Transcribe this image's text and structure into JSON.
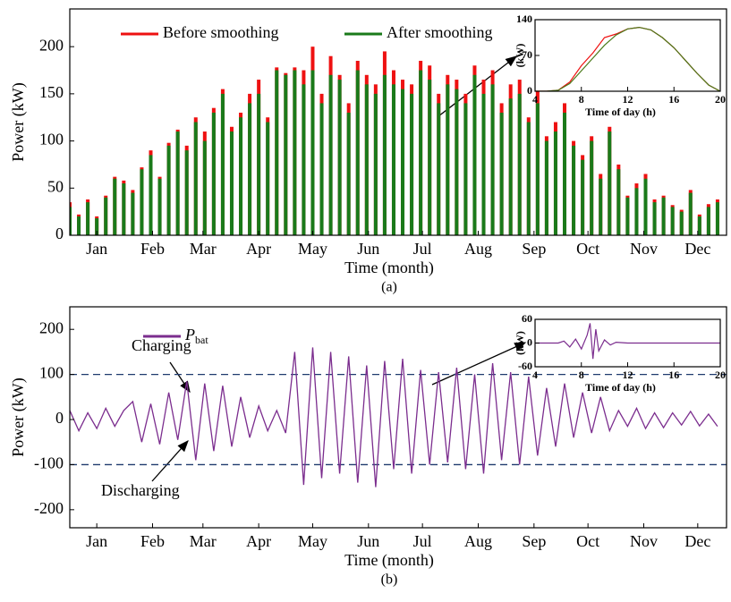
{
  "chart_data": [
    {
      "type": "bar",
      "xlabel": "Time (month)",
      "ylabel": "Power (kW)",
      "caption": "(a)",
      "x": [
        0,
        5,
        10,
        15,
        20,
        25,
        30,
        35,
        40,
        45,
        50,
        55,
        60,
        65,
        70,
        75,
        80,
        85,
        90,
        95,
        100,
        105,
        110,
        115,
        120,
        125,
        130,
        135,
        140,
        145,
        150,
        155,
        160,
        165,
        170,
        175,
        180,
        185,
        190,
        195,
        200,
        205,
        210,
        215,
        220,
        225,
        230,
        235,
        240,
        245,
        250,
        255,
        260,
        265,
        270,
        275,
        280,
        285,
        290,
        295,
        300,
        305,
        310,
        315,
        320,
        325,
        330,
        335,
        340,
        345,
        350,
        355,
        360
      ],
      "xlim": [
        0,
        365
      ],
      "xticks": [
        {
          "value": 15,
          "label": "Jan"
        },
        {
          "value": 46,
          "label": "Feb"
        },
        {
          "value": 74,
          "label": "Mar"
        },
        {
          "value": 105,
          "label": "Apr"
        },
        {
          "value": 135,
          "label": "May"
        },
        {
          "value": 166,
          "label": "Jun"
        },
        {
          "value": 196,
          "label": "Jul"
        },
        {
          "value": 227,
          "label": "Aug"
        },
        {
          "value": 258,
          "label": "Sep"
        },
        {
          "value": 288,
          "label": "Oct"
        },
        {
          "value": 319,
          "label": "Nov"
        },
        {
          "value": 349,
          "label": "Dec"
        }
      ],
      "ylim": [
        0,
        240
      ],
      "yticks": [
        0,
        50,
        100,
        150,
        200
      ],
      "series": [
        {
          "name": "Before smoothing",
          "color": "#ee1111",
          "values": [
            35,
            22,
            38,
            20,
            42,
            62,
            58,
            48,
            72,
            90,
            62,
            98,
            112,
            95,
            125,
            110,
            135,
            155,
            115,
            130,
            150,
            165,
            125,
            178,
            172,
            178,
            175,
            200,
            150,
            190,
            170,
            140,
            185,
            170,
            160,
            195,
            175,
            165,
            160,
            185,
            180,
            150,
            170,
            165,
            150,
            180,
            165,
            175,
            140,
            160,
            165,
            125,
            160,
            105,
            120,
            140,
            100,
            85,
            105,
            65,
            115,
            75,
            42,
            55,
            65,
            38,
            42,
            32,
            27,
            48,
            22,
            33,
            38
          ]
        },
        {
          "name": "After smoothing",
          "color": "#1a7a1a",
          "values": [
            30,
            20,
            35,
            18,
            40,
            60,
            55,
            45,
            70,
            85,
            60,
            95,
            110,
            90,
            120,
            100,
            130,
            150,
            110,
            125,
            140,
            150,
            120,
            175,
            170,
            175,
            160,
            175,
            140,
            170,
            165,
            130,
            175,
            160,
            150,
            170,
            160,
            155,
            150,
            175,
            165,
            140,
            160,
            155,
            140,
            170,
            150,
            160,
            130,
            145,
            150,
            120,
            140,
            100,
            110,
            130,
            95,
            80,
            100,
            60,
            110,
            70,
            40,
            50,
            60,
            35,
            40,
            30,
            25,
            45,
            20,
            30,
            35
          ]
        }
      ]
    },
    {
      "type": "line",
      "xlabel": "Time of day (h)",
      "ylabel": "(kW)",
      "x": [
        4,
        5,
        6,
        7,
        8,
        9,
        10,
        11,
        12,
        13,
        14,
        15,
        16,
        17,
        18,
        19,
        20
      ],
      "xlim": [
        4,
        20
      ],
      "xticks": [
        4,
        8,
        12,
        16,
        20
      ],
      "ylim": [
        0,
        140
      ],
      "yticks": [
        0,
        70,
        140
      ],
      "series": [
        {
          "name": "Before smoothing",
          "color": "#ee1111",
          "values": [
            0,
            0,
            2,
            18,
            50,
            75,
            105,
            112,
            122,
            125,
            120,
            105,
            85,
            60,
            35,
            12,
            0
          ]
        },
        {
          "name": "After smoothing",
          "color": "#4a7a1a",
          "values": [
            0,
            0,
            2,
            15,
            40,
            65,
            90,
            110,
            122,
            125,
            120,
            105,
            85,
            60,
            35,
            12,
            0
          ]
        }
      ]
    },
    {
      "type": "line",
      "xlabel": "Time (month)",
      "ylabel": "Power (kW)",
      "caption": "(b)",
      "annotations": [
        "Charging",
        "Discharging"
      ],
      "hlines": [
        100,
        -100
      ],
      "x": [
        0,
        5,
        10,
        15,
        20,
        25,
        30,
        35,
        40,
        45,
        50,
        55,
        60,
        65,
        70,
        75,
        80,
        85,
        90,
        95,
        100,
        105,
        110,
        115,
        120,
        125,
        130,
        135,
        140,
        145,
        150,
        155,
        160,
        165,
        170,
        175,
        180,
        185,
        190,
        195,
        200,
        205,
        210,
        215,
        220,
        225,
        230,
        235,
        240,
        245,
        250,
        255,
        260,
        265,
        270,
        275,
        280,
        285,
        290,
        295,
        300,
        305,
        310,
        315,
        320,
        325,
        330,
        335,
        340,
        345,
        350,
        355,
        360
      ],
      "xlim": [
        0,
        365
      ],
      "xticks": [
        {
          "value": 15,
          "label": "Jan"
        },
        {
          "value": 46,
          "label": "Feb"
        },
        {
          "value": 74,
          "label": "Mar"
        },
        {
          "value": 105,
          "label": "Apr"
        },
        {
          "value": 135,
          "label": "May"
        },
        {
          "value": 166,
          "label": "Jun"
        },
        {
          "value": 196,
          "label": "Jul"
        },
        {
          "value": 227,
          "label": "Aug"
        },
        {
          "value": 258,
          "label": "Sep"
        },
        {
          "value": 288,
          "label": "Oct"
        },
        {
          "value": 319,
          "label": "Nov"
        },
        {
          "value": 349,
          "label": "Dec"
        }
      ],
      "ylim": [
        -240,
        250
      ],
      "yticks": [
        -200,
        -100,
        0,
        100,
        200
      ],
      "series": [
        {
          "name": "P",
          "subscript": "bat",
          "color": "#7b2d8e",
          "values": [
            20,
            -25,
            15,
            -20,
            25,
            -15,
            20,
            40,
            -50,
            35,
            -55,
            60,
            -45,
            85,
            -90,
            80,
            -70,
            75,
            -60,
            50,
            -40,
            30,
            -25,
            20,
            -30,
            150,
            -145,
            160,
            -130,
            150,
            -120,
            140,
            -140,
            120,
            -150,
            130,
            -110,
            135,
            -120,
            110,
            -100,
            105,
            -95,
            115,
            -110,
            100,
            -120,
            125,
            -90,
            105,
            -100,
            95,
            -80,
            70,
            -60,
            80,
            -40,
            60,
            -30,
            50,
            -25,
            20,
            -15,
            25,
            -20,
            15,
            -18,
            15,
            -12,
            18,
            -14,
            12,
            -15
          ]
        }
      ]
    },
    {
      "type": "line",
      "xlabel": "Time of day (h)",
      "ylabel": "(kW)",
      "x": [
        4,
        6,
        6.5,
        7,
        7.5,
        8,
        8.5,
        8.75,
        9,
        9.25,
        9.5,
        10,
        10.5,
        11,
        12,
        16,
        20
      ],
      "xlim": [
        4,
        20
      ],
      "xticks": [
        4,
        8,
        12,
        16,
        20
      ],
      "ylim": [
        -60,
        60
      ],
      "yticks": [
        -60,
        0,
        60
      ],
      "series": [
        {
          "name": "P",
          "subscript": "bat",
          "color": "#7b2d8e",
          "values": [
            0,
            0,
            5,
            -10,
            10,
            -15,
            20,
            50,
            -40,
            35,
            -20,
            8,
            -5,
            2,
            0,
            0,
            0
          ]
        }
      ]
    }
  ]
}
